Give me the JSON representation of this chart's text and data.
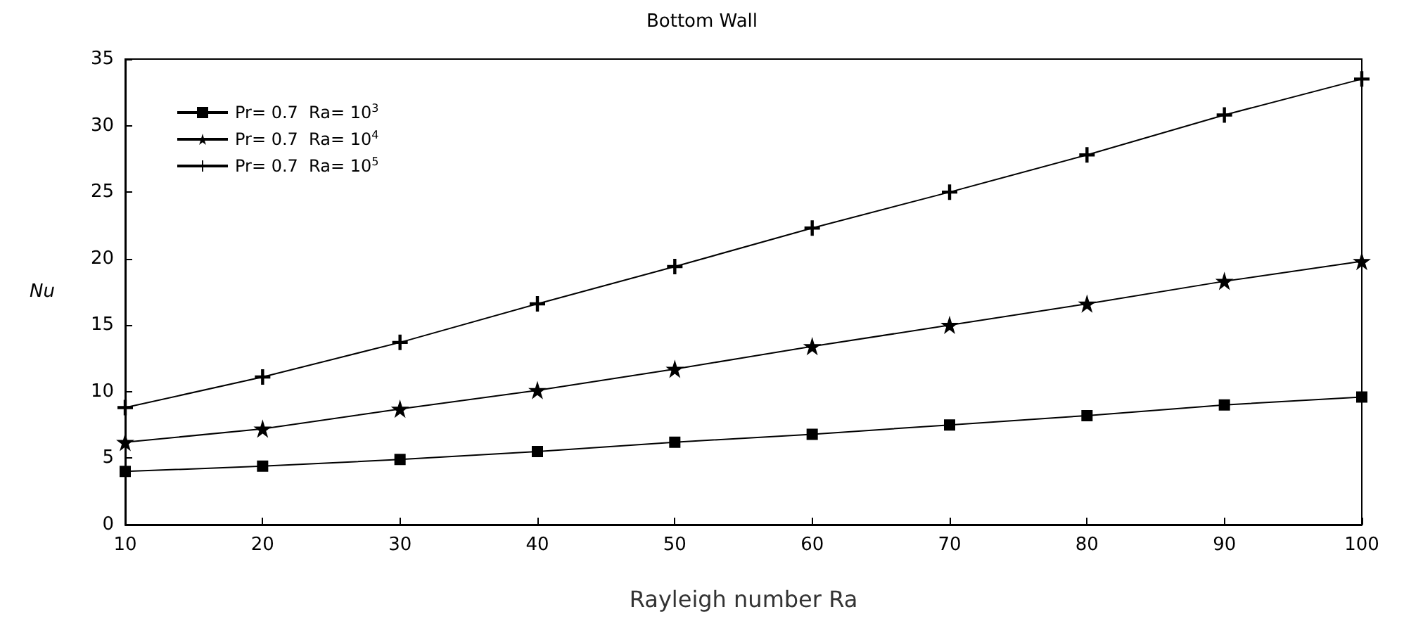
{
  "chart_data": {
    "type": "line",
    "title": "Bottom Wall",
    "xlabel": "Rayleigh number Ra",
    "ylabel": "Nu",
    "x": [
      10,
      20,
      30,
      40,
      50,
      60,
      70,
      80,
      90,
      100
    ],
    "xlim": [
      10,
      100
    ],
    "xticks": [
      10,
      20,
      30,
      40,
      50,
      60,
      70,
      80,
      90,
      100
    ],
    "ylim": [
      0,
      35
    ],
    "yticks": [
      0,
      5,
      10,
      15,
      20,
      25,
      30,
      35
    ],
    "grid": false,
    "legend": "top left",
    "line_style": "solid",
    "series": [
      {
        "name": "Pr= 0.7  Ra= 10$^{3}$",
        "color": "#000000",
        "marker": "square",
        "values": [
          4.0,
          4.4,
          4.9,
          5.5,
          6.2,
          6.8,
          7.5,
          8.2,
          9.0,
          9.6
        ]
      },
      {
        "name": "Pr= 0.7  Ra= 10$^{4}$",
        "color": "#000000",
        "marker": "star",
        "values": [
          6.2,
          7.2,
          8.7,
          10.1,
          11.7,
          13.4,
          15.0,
          16.6,
          18.3,
          19.8
        ]
      },
      {
        "name": "Pr= 0.7  Ra= 10$^{5}$",
        "color": "#000000",
        "marker": "cross",
        "values": [
          8.8,
          11.1,
          13.7,
          16.6,
          19.4,
          22.3,
          25.0,
          27.8,
          30.8,
          33.5
        ]
      }
    ]
  }
}
